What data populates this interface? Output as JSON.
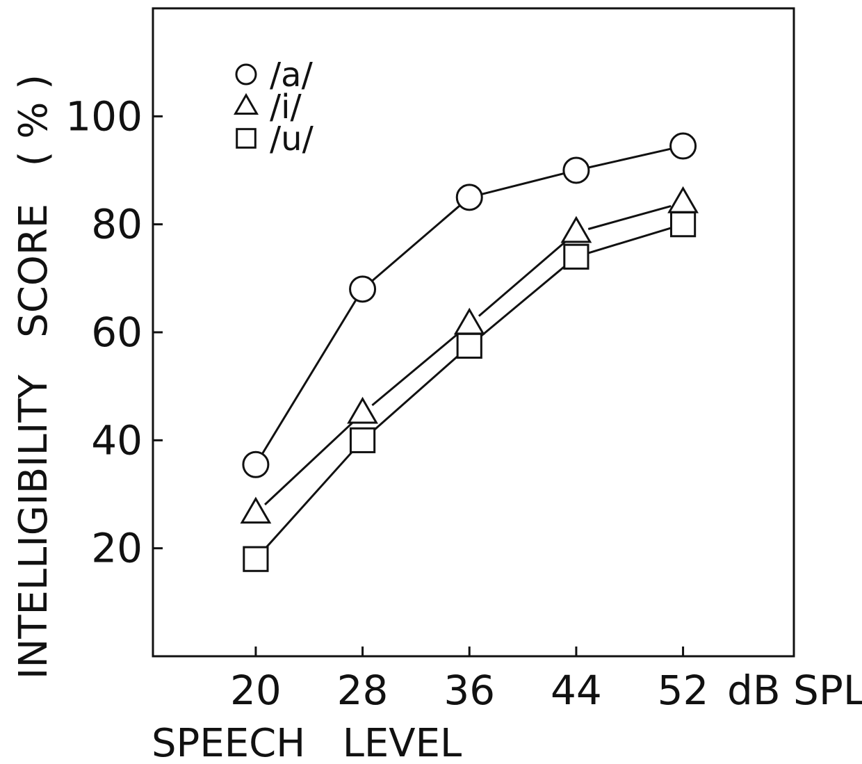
{
  "chart_data": {
    "type": "line",
    "title": "",
    "xlabel": "SPEECH   LEVEL",
    "x_unit": "dB SPL",
    "ylabel": "INTELLIGIBILITY   SCORE   ( % )",
    "x": [
      20,
      28,
      36,
      44,
      52
    ],
    "x_tick_labels": [
      "20",
      "28",
      "36",
      "44",
      "52"
    ],
    "y_ticks": [
      20,
      40,
      60,
      80,
      100
    ],
    "y_tick_labels": [
      "20",
      "40",
      "60",
      "80",
      "100"
    ],
    "xlim": [
      12.3,
      60.3
    ],
    "ylim": [
      0,
      120
    ],
    "grid": false,
    "legend_position": "top-left",
    "series": [
      {
        "name": "/a/",
        "marker": "circle",
        "values": [
          35.5,
          68,
          85,
          90,
          94.5
        ]
      },
      {
        "name": "/i/",
        "marker": "triangle",
        "values": [
          26.5,
          45,
          61.5,
          78.5,
          84
        ]
      },
      {
        "name": "/u/",
        "marker": "square",
        "values": [
          18,
          40,
          57.5,
          74,
          80
        ]
      }
    ],
    "line_color": "#111111"
  }
}
